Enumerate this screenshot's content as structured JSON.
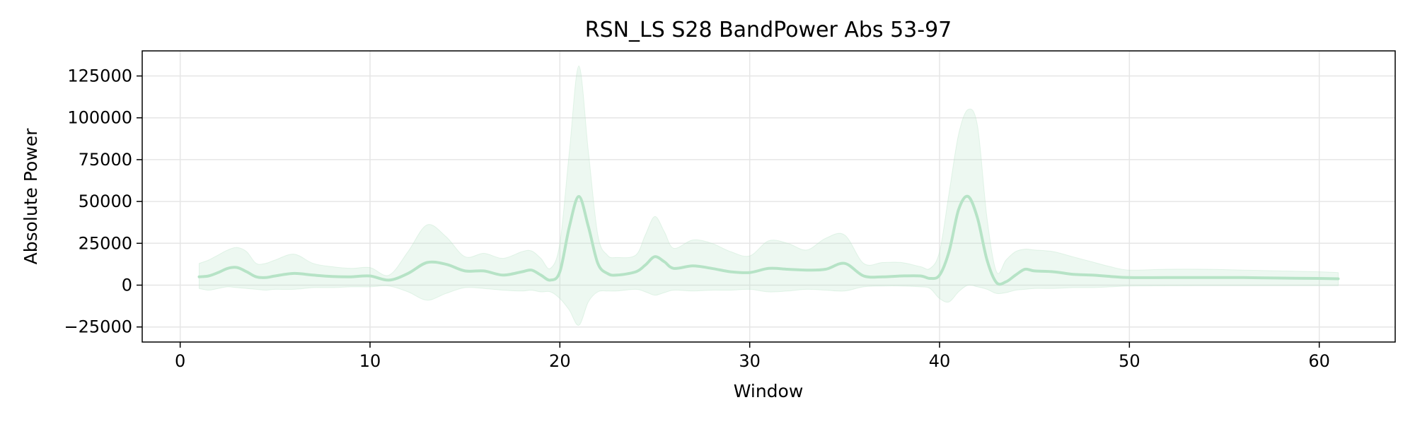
{
  "chart_data": {
    "type": "line",
    "title": "RSN_LS S28 BandPower Abs 53-97",
    "xlabel": "Window",
    "ylabel": "Absolute Power",
    "xlim": [
      -2,
      64
    ],
    "ylim": [
      -34000,
      140000
    ],
    "xticks": [
      0,
      10,
      20,
      30,
      40,
      50,
      60
    ],
    "xtick_labels": [
      "0",
      "10",
      "20",
      "30",
      "40",
      "50",
      "60"
    ],
    "yticks": [
      -25000,
      0,
      25000,
      50000,
      75000,
      100000,
      125000
    ],
    "ytick_labels": [
      "−25000",
      "0",
      "25000",
      "50000",
      "75000",
      "100000",
      "125000"
    ],
    "grid": true,
    "line_color": "#b6e3c6",
    "band_color": "#b6e3c6",
    "series": [
      {
        "x": [
          1,
          1.5,
          2,
          2.5,
          3,
          3.5,
          4,
          4.5,
          5,
          6,
          7,
          8,
          9,
          10,
          11,
          12,
          13,
          14,
          15,
          16,
          17,
          18,
          18.5,
          19,
          19.5,
          20,
          20.5,
          21,
          21.5,
          22,
          22.5,
          23,
          24,
          24.5,
          25,
          25.5,
          26,
          27,
          28,
          29,
          30,
          31,
          32,
          33,
          34,
          35,
          36,
          37,
          38,
          39,
          39.5,
          40,
          40.5,
          41,
          41.5,
          42,
          42.5,
          43,
          43.5,
          44,
          44.5,
          45,
          46,
          47,
          48,
          49,
          50,
          52,
          54,
          56,
          58,
          60,
          61
        ],
        "mean": [
          5000,
          5500,
          7500,
          10000,
          10500,
          8000,
          5000,
          4500,
          5500,
          7000,
          6000,
          5200,
          5000,
          5500,
          3000,
          7000,
          13500,
          12500,
          8500,
          8500,
          6000,
          8000,
          9000,
          6000,
          3000,
          8000,
          35000,
          53000,
          35000,
          13000,
          7000,
          6000,
          8000,
          12000,
          17000,
          14000,
          10000,
          11500,
          10000,
          8000,
          7500,
          10000,
          9500,
          9000,
          9500,
          13000,
          5500,
          5000,
          5500,
          5500,
          4000,
          6000,
          20000,
          45000,
          53000,
          40000,
          15000,
          1500,
          2000,
          6000,
          9500,
          8500,
          8000,
          6500,
          6000,
          5200,
          4500,
          4500,
          4500,
          4500,
          4200,
          4000,
          3800
        ],
        "upper": [
          13000,
          15000,
          18000,
          21000,
          22500,
          20000,
          13000,
          13000,
          15000,
          18500,
          13000,
          11000,
          10000,
          10500,
          6000,
          20000,
          36000,
          29000,
          17000,
          19000,
          16000,
          20000,
          20500,
          16000,
          10000,
          25000,
          80000,
          131000,
          80000,
          30000,
          18000,
          16500,
          18000,
          30000,
          41000,
          32000,
          22000,
          27000,
          25000,
          20000,
          17500,
          26500,
          25000,
          21000,
          28000,
          30000,
          13000,
          13500,
          13500,
          11000,
          10000,
          20000,
          55000,
          90000,
          105000,
          95000,
          40000,
          8000,
          15000,
          20000,
          21500,
          21000,
          20000,
          17000,
          14000,
          11000,
          9000,
          9500,
          9500,
          9000,
          8500,
          8000,
          7500
        ],
        "lower": [
          -2000,
          -3000,
          -2000,
          -1000,
          -1500,
          -2000,
          -2500,
          -3000,
          -2500,
          -2500,
          -1500,
          -1500,
          -1000,
          -1000,
          -500,
          -4000,
          -9000,
          -5000,
          -1500,
          -2000,
          -3000,
          -3500,
          -3000,
          -4000,
          -4000,
          -8000,
          -15000,
          -24000,
          -10000,
          -4000,
          -3500,
          -3500,
          -2500,
          -4000,
          -6000,
          -4500,
          -3000,
          -3500,
          -3000,
          -3000,
          -2500,
          -4000,
          -3500,
          -2500,
          -3000,
          -3500,
          -1000,
          -500,
          -500,
          -1000,
          -2000,
          -8000,
          -10000,
          -4000,
          0,
          -1000,
          -2500,
          -5000,
          -4500,
          -3000,
          -2500,
          -2000,
          -2000,
          -1500,
          -1500,
          -1000,
          -500,
          -400,
          -300,
          -300,
          -300,
          -300,
          -300
        ]
      }
    ]
  }
}
